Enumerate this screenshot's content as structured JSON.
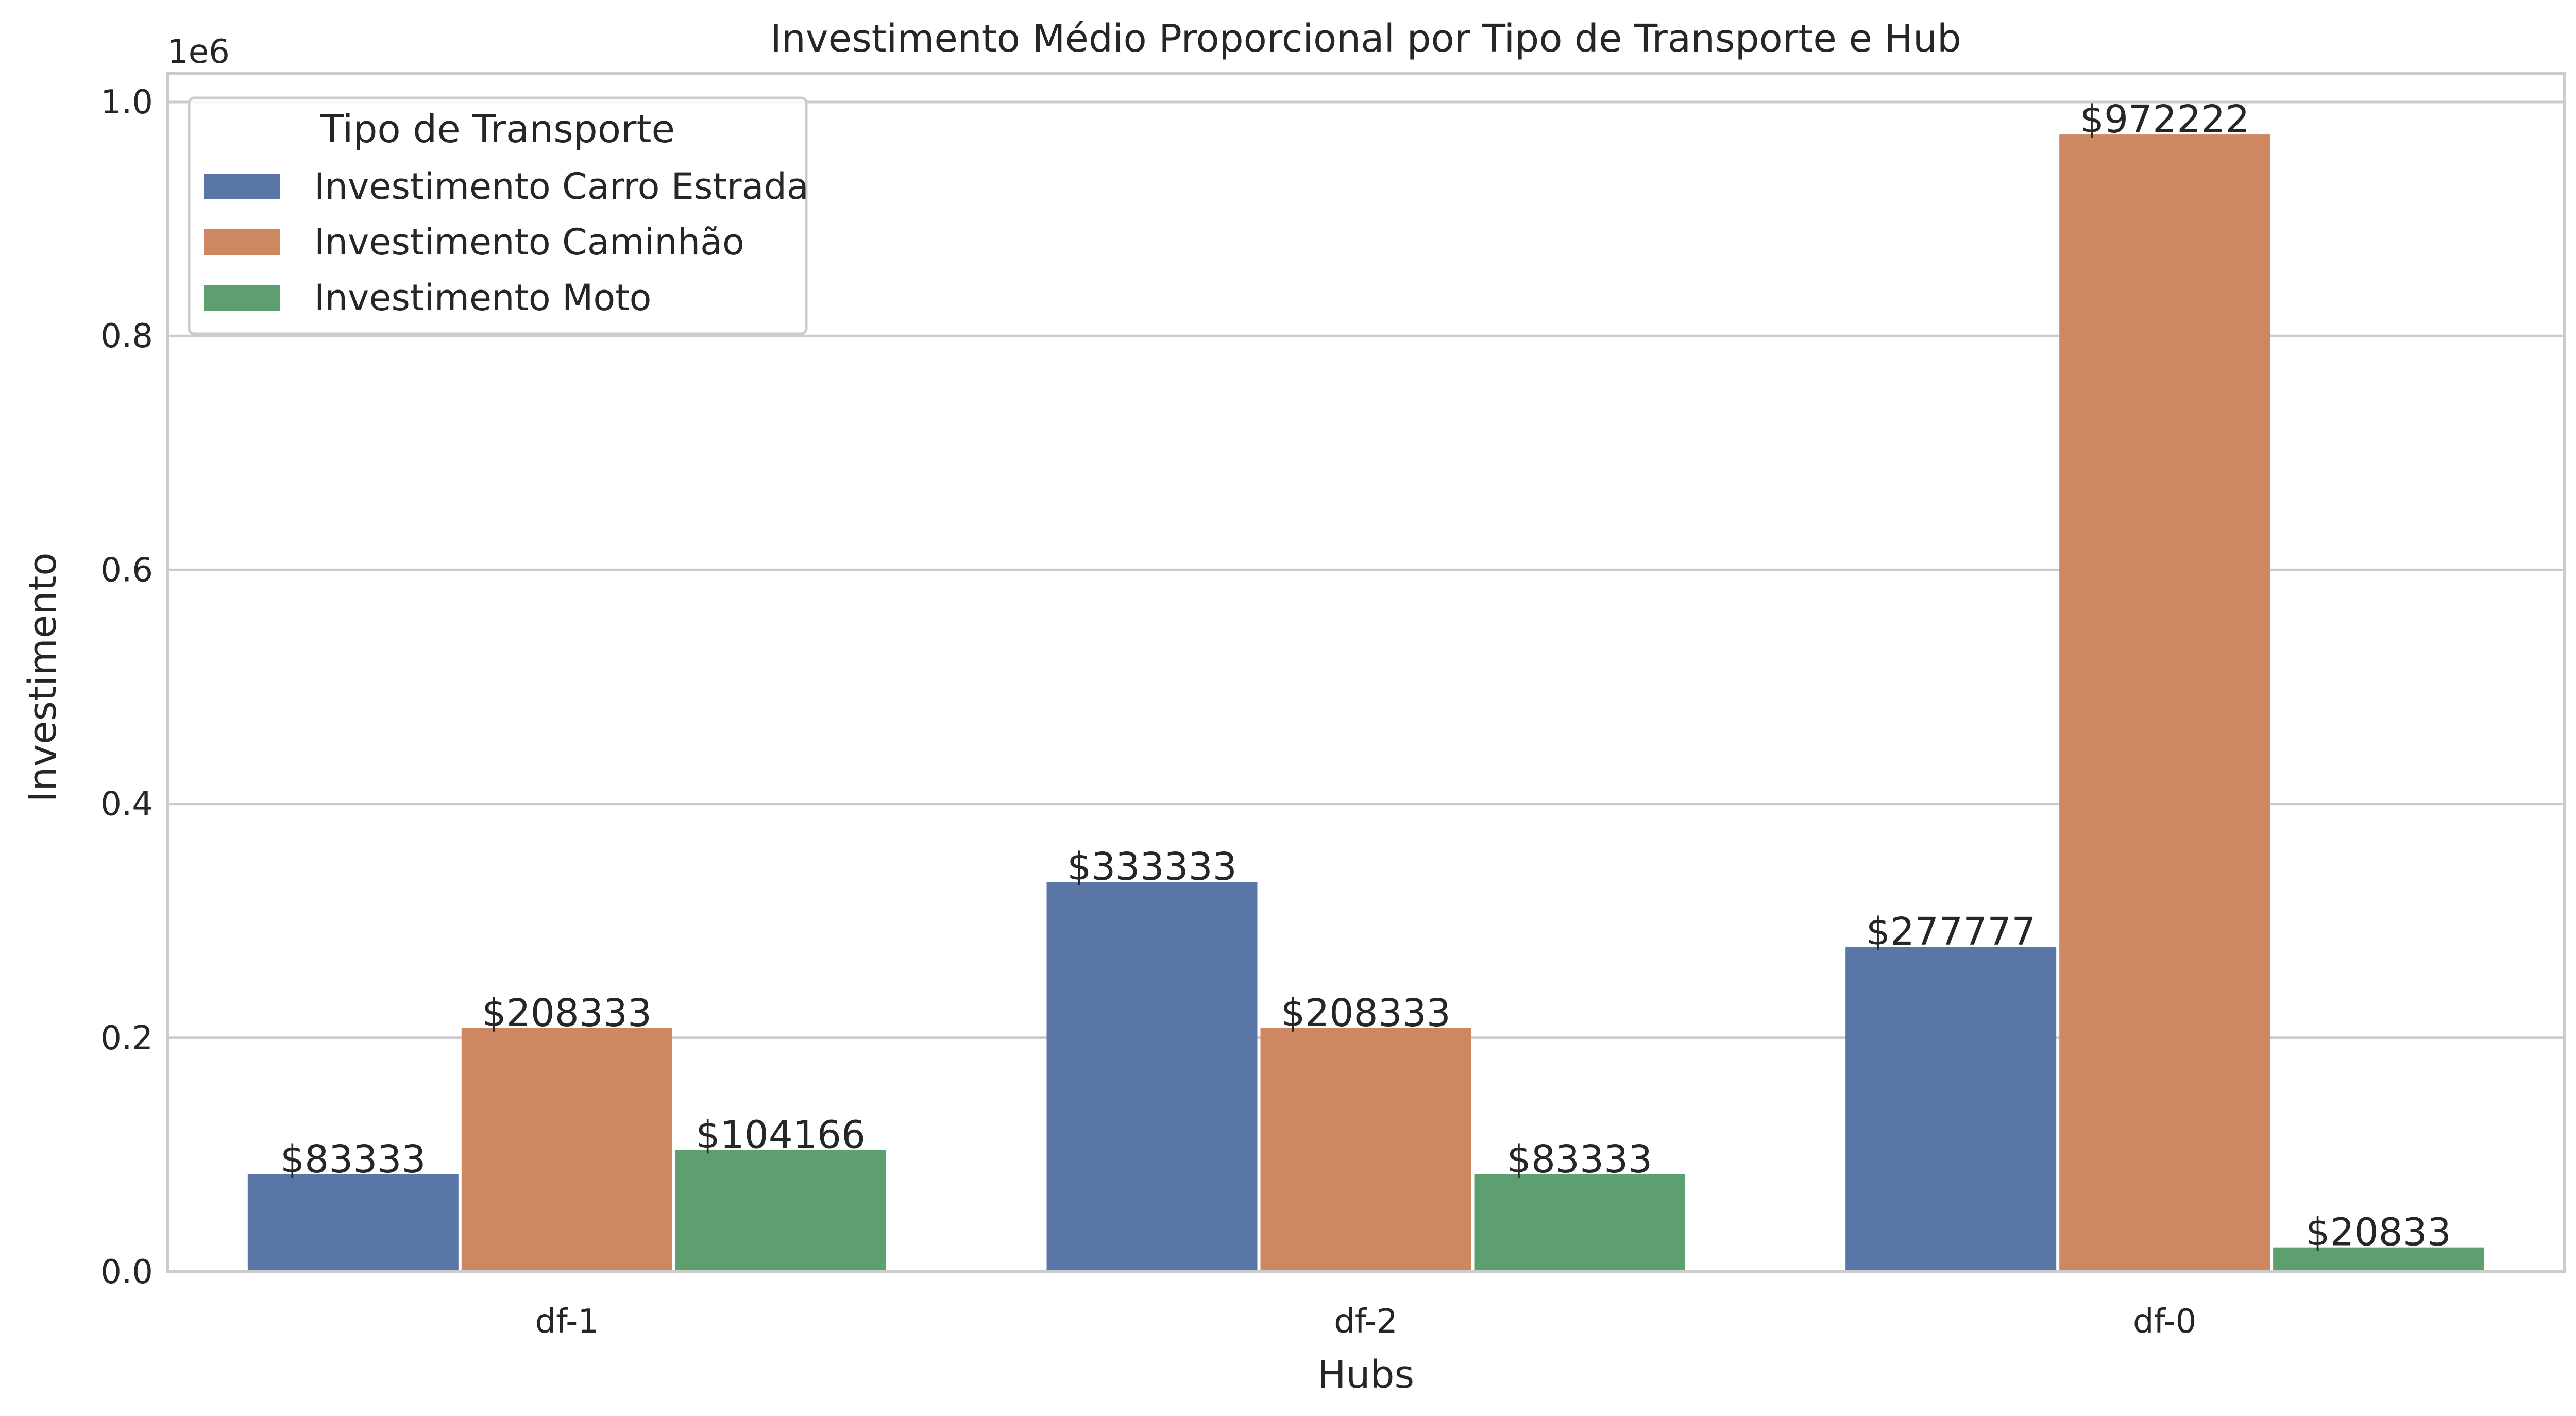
{
  "chart_data": {
    "type": "bar",
    "title": "Investimento Médio Proporcional por Tipo de Transporte e Hub",
    "xlabel": "Hubs",
    "ylabel": "Investimento",
    "offset_label": "1e6",
    "categories": [
      "df-1",
      "df-2",
      "df-0"
    ],
    "series": [
      {
        "name": "Investimento Carro Estrada",
        "color": "#5a76a6",
        "values": [
          83333,
          333333,
          277777
        ],
        "labels": [
          "$83333",
          "$333333",
          "$277777"
        ]
      },
      {
        "name": "Investimento Caminhão",
        "color": "#cd8862",
        "values": [
          208333,
          208333,
          972222
        ],
        "labels": [
          "$208333",
          "$208333",
          "$972222"
        ]
      },
      {
        "name": "Investimento Moto",
        "color": "#5e9f6f",
        "values": [
          104166,
          83333,
          20833
        ],
        "labels": [
          "$104166",
          "$83333",
          "$20833"
        ]
      }
    ],
    "ylim": [
      0,
      1000000
    ],
    "yticks": [
      0,
      200000,
      400000,
      600000,
      800000,
      1000000
    ],
    "ytick_labels": [
      "0.0",
      "0.2",
      "0.4",
      "0.6",
      "0.8",
      "1.0"
    ],
    "legend": {
      "title": "Tipo de Transporte",
      "placement": "top-left"
    },
    "grid": true
  }
}
